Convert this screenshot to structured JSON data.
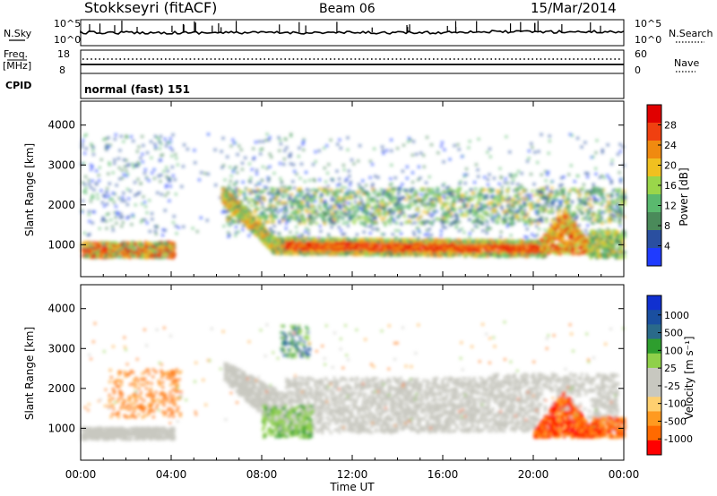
{
  "header": {
    "station": "Stokkseyri (fitACF)",
    "beam": "Beam 06",
    "date": "15/Mar/2014"
  },
  "panels": {
    "nsky_label": "N.Sky",
    "nsky_ticks": [
      "10^5",
      "10^0"
    ],
    "nsearch_label": "N.Search",
    "nsearch_ticks": [
      "10^5",
      "10^0"
    ],
    "freq_label": "Freq.",
    "freq_unit": "[MHz]",
    "freq_ticks": [
      "18",
      "8"
    ],
    "nave_label": "Nave",
    "nave_ticks": [
      "60",
      "0"
    ],
    "cpid_label": "CPID",
    "cpid_value": "normal (fast) 151"
  },
  "colors": {
    "power": [
      "#1f3bff",
      "#2a4fa0",
      "#4a8a5a",
      "#5ab96e",
      "#9ad64a",
      "#f0c020",
      "#f08a10",
      "#f04010",
      "#e00000"
    ],
    "velocity": [
      "#ff0000",
      "#ff6a00",
      "#ff9a20",
      "#ffd070",
      "#c8c8c0",
      "#c8c8c0",
      "#8fd04a",
      "#2e9e2e",
      "#2a6a8a",
      "#1a4fa0",
      "#1030d0"
    ],
    "ground_scatter": "#c8c8c0"
  },
  "chart_data": [
    {
      "type": "heatmap",
      "panel": "power",
      "ylabel": "Slant Range [km]",
      "y_ticks": [
        "1000",
        "2000",
        "3000",
        "4000"
      ],
      "ylim": [
        200,
        4600
      ],
      "xlim_hours": [
        0,
        24
      ],
      "colorbar": {
        "label": "Power [dB]",
        "ticks": [
          "4",
          "8",
          "12",
          "16",
          "20",
          "24",
          "28"
        ],
        "range": [
          0,
          32
        ]
      },
      "features": [
        {
          "from_hour": 0.0,
          "to_hour": 4.0,
          "range_km": 850,
          "level": "red"
        },
        {
          "from_hour": 6.2,
          "to_hour": 20.5,
          "range_km": 1000,
          "level": "red"
        },
        {
          "from_hour": 20.5,
          "to_hour": 22.5,
          "range_km": 1400,
          "level": "orange"
        }
      ]
    },
    {
      "type": "heatmap",
      "panel": "velocity",
      "ylabel": "Slant Range [km]",
      "y_ticks": [
        "1000",
        "2000",
        "3000",
        "4000"
      ],
      "ylim": [
        200,
        4600
      ],
      "xlim_hours": [
        0,
        24
      ],
      "xlabel": "Time UT",
      "x_ticks": [
        "00:00",
        "04:00",
        "08:00",
        "12:00",
        "16:00",
        "20:00",
        "00:00"
      ],
      "colorbar": {
        "label": "Velocity [m s⁻¹]",
        "ticks": [
          "1000",
          "500",
          "100",
          "25",
          "-25",
          "-100",
          "-500",
          "-1000"
        ]
      },
      "features": [
        {
          "from_hour": 0.0,
          "to_hour": 4.0,
          "range_km": 850,
          "velocity": "ground"
        },
        {
          "from_hour": 6.2,
          "to_hour": 20.5,
          "range_km": 1300,
          "velocity": "ground"
        },
        {
          "from_hour": 20.0,
          "to_hour": 22.5,
          "range_km": 1500,
          "velocity": "-1000"
        }
      ]
    }
  ]
}
